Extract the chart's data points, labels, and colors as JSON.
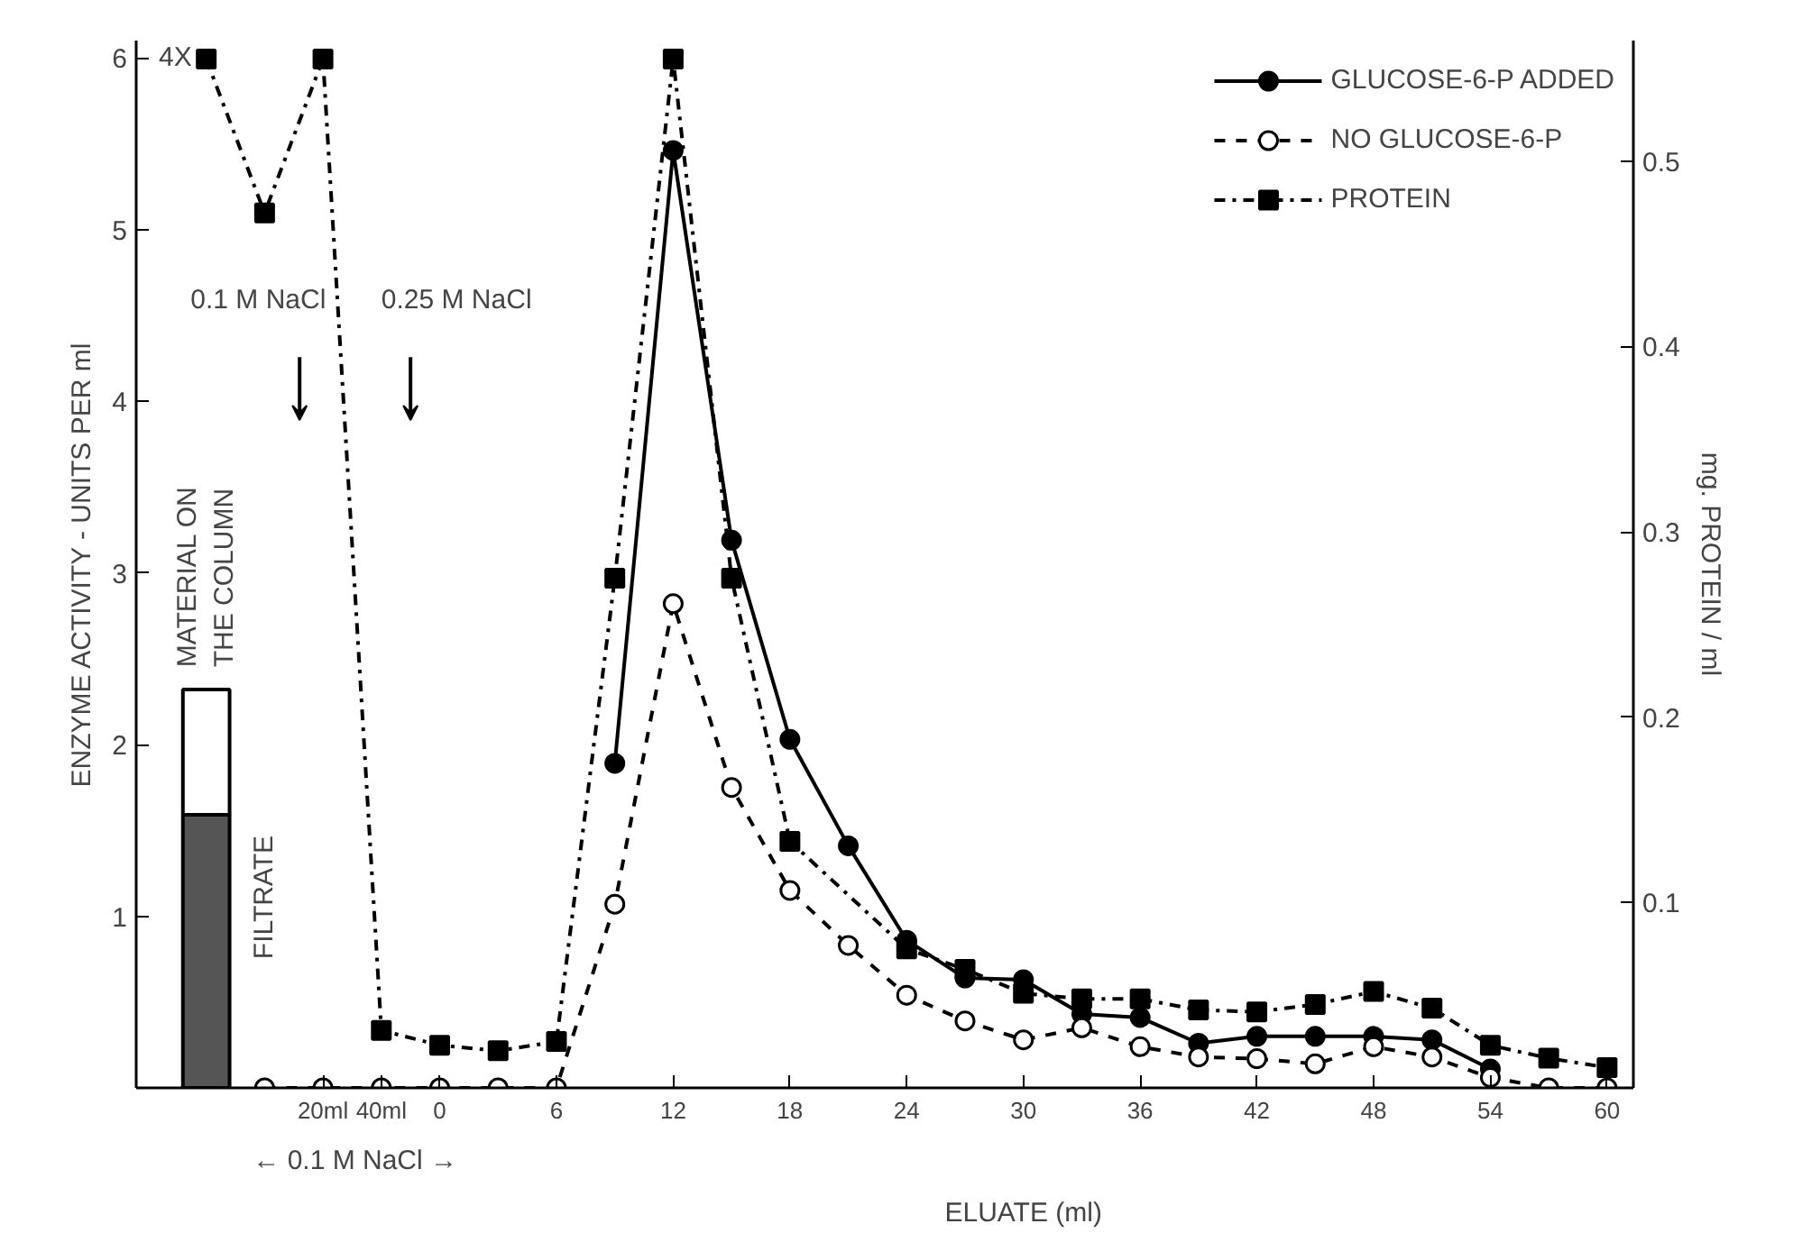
{
  "chart_data": {
    "type": "line",
    "ylabel": "ENZYME ACTIVITY - UNITS PER ml",
    "y2label": "mg. PROTEIN / ml",
    "xlabel": "ELUATE (ml)",
    "categories": [
      null,
      null,
      "20ml",
      "40ml",
      "0",
      null,
      "6",
      null,
      "12",
      null,
      "18",
      null,
      "24",
      null,
      "30",
      null,
      "36",
      null,
      "42",
      null,
      "48",
      null,
      "54",
      null,
      "60"
    ],
    "ylim": [
      0,
      6.1
    ],
    "yticks": [
      1,
      2,
      3,
      4,
      5,
      6
    ],
    "y2lim": [
      0,
      0.565
    ],
    "y2ticks": [
      0.1,
      0.2,
      0.3,
      0.4,
      0.5
    ],
    "stacked": true,
    "legend": "top right",
    "grid": false,
    "series": [
      {
        "type": "bar",
        "values": [
          1.59,
          null,
          null,
          null,
          null,
          null,
          null,
          null,
          null,
          null,
          null,
          null,
          null,
          null,
          null,
          null,
          null,
          null,
          null,
          null,
          null,
          null,
          null,
          null,
          null
        ],
        "color": "#555555"
      },
      {
        "type": "bar",
        "values": [
          0.73,
          null,
          null,
          null,
          null,
          null,
          null,
          null,
          null,
          null,
          null,
          null,
          null,
          null,
          null,
          null,
          null,
          null,
          null,
          null,
          null,
          null,
          null,
          null,
          null
        ],
        "color": "#ffffff"
      },
      {
        "name": "GLUCOSE-6-P ADDED",
        "color": "#000000",
        "marker": "circle",
        "line_style": "solid",
        "values": [
          null,
          null,
          null,
          null,
          null,
          null,
          null,
          1.89,
          5.46,
          3.19,
          2.03,
          1.41,
          0.86,
          0.64,
          0.63,
          0.43,
          0.41,
          0.26,
          0.3,
          0.3,
          0.3,
          0.28,
          0.11,
          null,
          null
        ]
      },
      {
        "name": "NO GLUCOSE-6-P",
        "color": "#000000",
        "marker": "circle_open",
        "line_style": "dashed",
        "values": [
          null,
          0,
          0,
          0,
          0,
          0,
          0,
          1.07,
          2.82,
          1.75,
          1.15,
          0.83,
          0.54,
          0.39,
          0.28,
          0.35,
          0.24,
          0.18,
          0.17,
          0.14,
          0.24,
          0.18,
          0.06,
          0,
          0
        ]
      },
      {
        "name": "PROTEIN",
        "axis": "y2",
        "color": "#000000",
        "marker": "square",
        "line_style": "dashdot",
        "values": [
          0.555,
          0.472,
          0.555,
          0.031,
          0.023,
          0.02,
          0.025,
          0.275,
          0.555,
          0.275,
          0.133,
          null,
          0.075,
          0.064,
          0.051,
          0.048,
          0.048,
          0.042,
          0.041,
          0.045,
          0.052,
          0.043,
          0.023,
          0.016,
          0.011
        ]
      }
    ],
    "annotations": [
      "4X",
      "MATERIAL ON THE COLUMN",
      "FILTRATE",
      "0.1 M NaCl",
      "0.25 M NaCl",
      "← 0.1 M NaCl →"
    ]
  }
}
